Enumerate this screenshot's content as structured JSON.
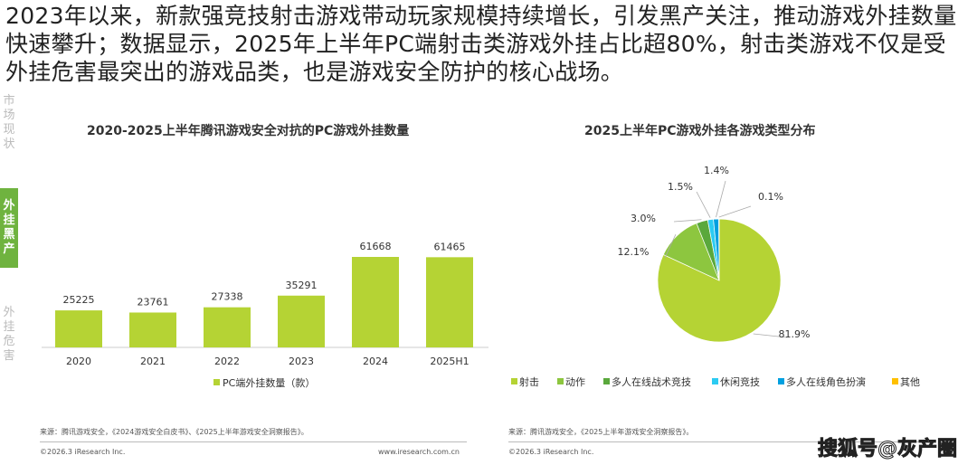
{
  "headline": "2023年以来，新款强竞技射击游戏带动玩家规模持续增长，引发黑产关注，推动游戏外挂数量快速攀升；数据显示，2025年上半年PC端射击类游戏外挂占比超80%，射击类游戏不仅是受外挂危害最突出的游戏品类，也是游戏安全防护的核心战场。",
  "sidebar": [
    {
      "label": "市场现状"
    },
    {
      "label": "外挂黑产"
    },
    {
      "label": "外挂危害"
    }
  ],
  "chart_data": [
    {
      "type": "bar",
      "title": "2020-2025上半年腾讯游戏安全对抗的PC游戏外挂数量",
      "categories": [
        "2020",
        "2021",
        "2022",
        "2023",
        "2024",
        "2025H1"
      ],
      "values": [
        25225,
        23761,
        27338,
        35291,
        61668,
        61465
      ],
      "legend": "PC端外挂数量（款）",
      "color": "#b5d334"
    },
    {
      "type": "pie",
      "title": "2025上半年PC游戏外挂各游戏类型分布",
      "slices": [
        {
          "name": "射击",
          "value": 81.9,
          "label": "81.9%",
          "color": "#b5d334"
        },
        {
          "name": "动作",
          "value": 12.1,
          "label": "12.1%",
          "color": "#8dc63f"
        },
        {
          "name": "多人在线战术竞技",
          "value": 3.0,
          "label": "3.0%",
          "color": "#5aa83c"
        },
        {
          "name": "休闲竞技",
          "value": 1.5,
          "label": "1.5%",
          "color": "#2ccbf2"
        },
        {
          "name": "多人在线角色扮演",
          "value": 1.4,
          "label": "1.4%",
          "color": "#00a0e0"
        },
        {
          "name": "其他",
          "value": 0.1,
          "label": "0.1%",
          "color": "#ffc000"
        }
      ]
    }
  ],
  "footer": {
    "left_source": "来源：腾讯游戏安全，《2024游戏安全白皮书》、《2025上半年游戏安全洞察报告》。",
    "right_source": "来源：腾讯游戏安全，《2025上半年游戏安全洞察报告》。",
    "copyright": "©2026.3 iResearch Inc.",
    "url": "www.iresearch.com.cn",
    "watermark": "搜狐号@灰产圈"
  }
}
